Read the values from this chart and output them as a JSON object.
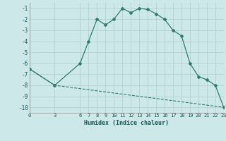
{
  "title": "",
  "xlabel": "Humidex (Indice chaleur)",
  "bg_color": "#cce8e8",
  "grid_color": "#b8d4d4",
  "line_color": "#2e7d6e",
  "curve1_x": [
    0,
    3,
    6,
    7,
    8,
    9,
    10,
    11,
    12,
    13,
    14,
    15,
    16,
    17,
    18,
    19,
    20,
    21,
    22,
    23
  ],
  "curve1_y": [
    -6.5,
    -8.0,
    -6.0,
    -4.0,
    -2.0,
    -2.5,
    -2.0,
    -1.0,
    -1.4,
    -1.0,
    -1.1,
    -1.5,
    -2.0,
    -3.0,
    -3.5,
    -6.0,
    -7.2,
    -7.5,
    -8.0,
    -10.0
  ],
  "curve2_x": [
    0,
    3,
    23
  ],
  "curve2_y": [
    -6.5,
    -8.0,
    -10.0
  ],
  "xlim": [
    0,
    23
  ],
  "ylim": [
    -10.5,
    -0.5
  ],
  "xticks": [
    0,
    3,
    6,
    7,
    8,
    9,
    10,
    11,
    12,
    13,
    14,
    15,
    16,
    17,
    18,
    19,
    20,
    21,
    22,
    23
  ],
  "yticks": [
    -1,
    -2,
    -3,
    -4,
    -5,
    -6,
    -7,
    -8,
    -9,
    -10
  ],
  "tick_fontsize": 5.0,
  "xlabel_fontsize": 6.0
}
